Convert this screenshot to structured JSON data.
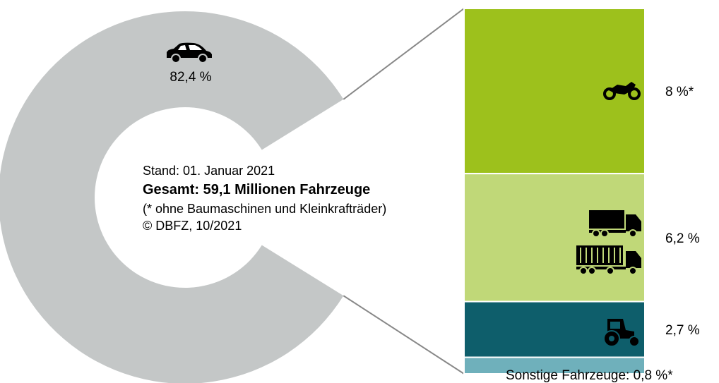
{
  "chart_data": {
    "type": "donut",
    "values": [
      82.4,
      8,
      6.2,
      2.7,
      0.8
    ],
    "value_labels": [
      "82,4 %",
      "8 %*",
      "6,2 %",
      "2,7 %",
      "Sonstige Fahrzeuge: 0,8 %*"
    ],
    "colors": [
      "#c4c7c7",
      "#9dc11c",
      "#c0d878",
      "#0e5e6b",
      "#6fb0bb"
    ],
    "notes": [
      "Stand: 01. Januar 2021",
      "Gesamt: 59,1 Millionen Fahrzeuge",
      "(* ohne Baumaschinen und Kleinkrafträder)",
      "© DBFZ, 10/2021"
    ]
  }
}
